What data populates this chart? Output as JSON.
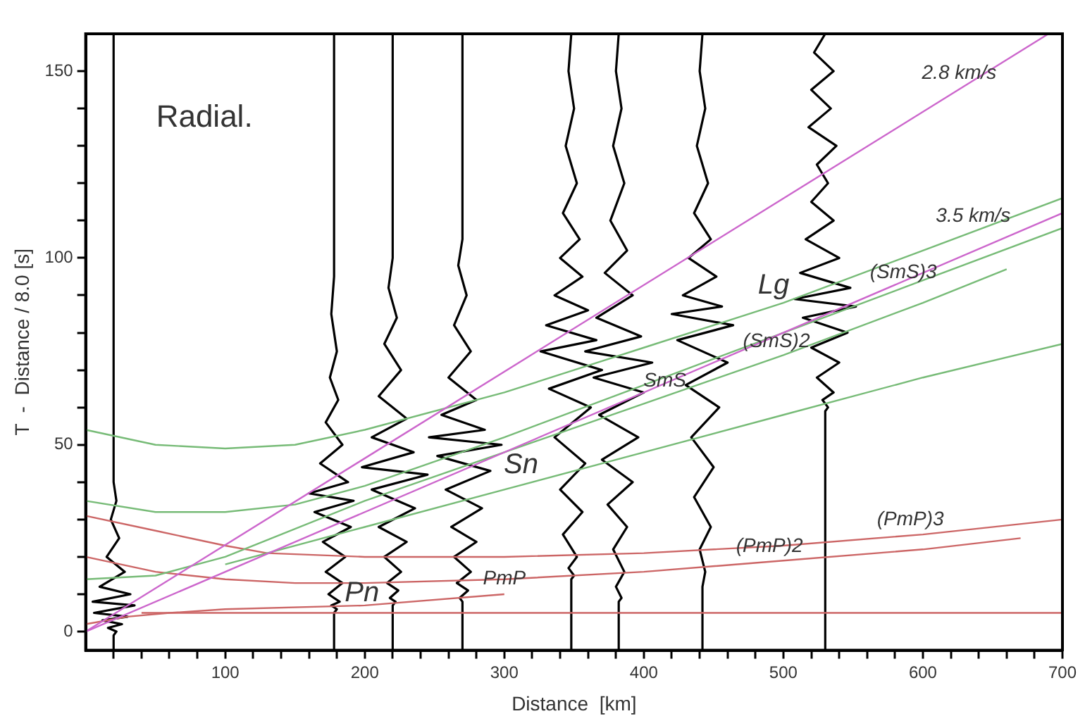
{
  "chart_data": {
    "type": "line",
    "xlabel": "Distance  [km]",
    "ylabel": "T  -  Distance / 8.0 [s]",
    "xlim": [
      0,
      700
    ],
    "ylim": [
      -5,
      160
    ],
    "xticks": [
      {
        "value": 20,
        "label": null
      },
      {
        "value": 40,
        "label": null
      },
      {
        "value": 60,
        "label": null
      },
      {
        "value": 80,
        "label": null
      },
      100,
      {
        "value": 120,
        "label": null
      },
      {
        "value": 140,
        "label": null
      },
      {
        "value": 160,
        "label": null
      },
      {
        "value": 180,
        "label": null
      },
      200,
      {
        "value": 220,
        "label": null
      },
      {
        "value": 240,
        "label": null
      },
      {
        "value": 260,
        "label": null
      },
      {
        "value": 280,
        "label": null
      },
      300,
      {
        "value": 320,
        "label": null
      },
      {
        "value": 340,
        "label": null
      },
      {
        "value": 360,
        "label": null
      },
      {
        "value": 380,
        "label": null
      },
      400,
      {
        "value": 420,
        "label": null
      },
      {
        "value": 440,
        "label": null
      },
      {
        "value": 460,
        "label": null
      },
      {
        "value": 480,
        "label": null
      },
      500,
      {
        "value": 520,
        "label": null
      },
      {
        "value": 540,
        "label": null
      },
      {
        "value": 560,
        "label": null
      },
      {
        "value": 580,
        "label": null
      },
      600,
      {
        "value": 620,
        "label": null
      },
      {
        "value": 640,
        "label": null
      },
      {
        "value": 660,
        "label": null
      },
      {
        "value": 680,
        "label": null
      },
      700
    ],
    "yticks": [
      0,
      {
        "value": 10,
        "label": null
      },
      {
        "value": 20,
        "label": null
      },
      {
        "value": 30,
        "label": null
      },
      {
        "value": 40,
        "label": null
      },
      50,
      {
        "value": 60,
        "label": null
      },
      {
        "value": 70,
        "label": null
      },
      {
        "value": 80,
        "label": null
      },
      {
        "value": 90,
        "label": null
      },
      100,
      {
        "value": 110,
        "label": null
      },
      {
        "value": 120,
        "label": null
      },
      {
        "value": 130,
        "label": null
      },
      {
        "value": 140,
        "label": null
      },
      150
    ],
    "grid": false,
    "legend": false,
    "marker": "none",
    "line_style": "solid",
    "series": [
      {
        "color": "#cc66cc",
        "x": [
          0,
          690
        ],
        "values": [
          0,
          160
        ]
      },
      {
        "color": "#cc66cc",
        "x": [
          0,
          700
        ],
        "values": [
          0,
          112
        ]
      },
      {
        "color": "#77bb77",
        "x": [
          0,
          50,
          100,
          150,
          200,
          300,
          400,
          500,
          600,
          700
        ],
        "values": [
          54,
          50,
          49,
          50,
          54,
          64,
          76,
          88,
          102,
          116
        ]
      },
      {
        "color": "#77bb77",
        "x": [
          0,
          50,
          100,
          150,
          200,
          300,
          400,
          500,
          600,
          700
        ],
        "values": [
          35,
          32,
          32,
          34,
          39,
          52,
          66,
          80,
          94,
          108
        ]
      },
      {
        "color": "#77bb77",
        "x": [
          0,
          50,
          100,
          200,
          300,
          400,
          500,
          600,
          660
        ],
        "values": [
          14,
          15,
          20,
          35,
          48,
          61,
          74,
          88,
          97
        ]
      },
      {
        "color": "#77bb77",
        "x": [
          100,
          200,
          300,
          400,
          500,
          600,
          700
        ],
        "values": [
          18,
          28,
          38,
          48,
          58,
          68,
          77
        ]
      },
      {
        "color": "#cc6666",
        "x": [
          0,
          50,
          100,
          130,
          200,
          300,
          400,
          500,
          600,
          700
        ],
        "values": [
          31,
          27,
          23,
          21,
          20,
          20,
          21,
          23,
          26,
          30
        ]
      },
      {
        "color": "#cc6666",
        "x": [
          0,
          50,
          100,
          150,
          200,
          300,
          400,
          500,
          600,
          670
        ],
        "values": [
          20,
          16,
          14,
          13,
          13,
          14,
          16,
          19,
          22,
          25
        ]
      },
      {
        "color": "#cc6666",
        "x": [
          0,
          30,
          60,
          100,
          200,
          300
        ],
        "values": [
          2,
          4,
          5,
          6,
          7,
          10
        ]
      },
      {
        "color": "#cc6666",
        "x": [
          40,
          700
        ],
        "values": [
          5,
          5
        ]
      },
      {
        "color": "#000000",
        "x": [
          20,
          20,
          22,
          18,
          24,
          15,
          28,
          10,
          32,
          5,
          35,
          6,
          30,
          12,
          26,
          16,
          22,
          20,
          20
        ],
        "values": [
          160,
          40,
          35,
          30,
          25,
          20,
          16,
          12,
          10,
          8,
          7,
          5,
          4,
          3,
          2,
          1,
          0,
          -1,
          -5
        ]
      },
      {
        "color": "#000000",
        "x": [
          178,
          178,
          176,
          180,
          175,
          181,
          172,
          184,
          168,
          188,
          160,
          192,
          164,
          190,
          170,
          186,
          172,
          184,
          174,
          182,
          176,
          180,
          178,
          178
        ],
        "values": [
          160,
          95,
          85,
          75,
          68,
          62,
          56,
          50,
          45,
          40,
          37,
          35,
          32,
          28,
          24,
          20,
          16,
          13,
          10,
          8,
          7,
          6,
          5,
          -5
        ]
      },
      {
        "color": "#000000",
        "x": [
          220,
          220,
          217,
          223,
          214,
          226,
          210,
          230,
          205,
          235,
          198,
          245,
          205,
          236,
          210,
          230,
          214,
          226,
          216,
          224,
          218,
          222,
          220,
          220
        ],
        "values": [
          160,
          100,
          92,
          84,
          77,
          70,
          63,
          57,
          52,
          48,
          44,
          42,
          38,
          33,
          28,
          24,
          20,
          16,
          13,
          11,
          9,
          8,
          7,
          -5
        ]
      },
      {
        "color": "#000000",
        "x": [
          270,
          270,
          267,
          273,
          264,
          276,
          260,
          280,
          255,
          286,
          246,
          298,
          252,
          290,
          258,
          284,
          262,
          280,
          264,
          276,
          266,
          274,
          268,
          270,
          270
        ],
        "values": [
          160,
          105,
          98,
          90,
          82,
          75,
          68,
          62,
          58,
          54,
          52,
          50,
          47,
          43,
          38,
          33,
          28,
          24,
          20,
          16,
          13,
          11,
          9,
          8,
          -5
        ]
      },
      {
        "color": "#000000",
        "x": [
          348,
          346,
          350,
          344,
          352,
          342,
          354,
          340,
          356,
          336,
          360,
          330,
          366,
          326,
          370,
          332,
          362,
          336,
          358,
          340,
          356,
          342,
          352,
          346,
          350,
          348,
          348
        ],
        "values": [
          160,
          150,
          140,
          130,
          120,
          112,
          105,
          100,
          95,
          90,
          86,
          82,
          78,
          75,
          70,
          65,
          60,
          52,
          45,
          38,
          32,
          26,
          20,
          17,
          15,
          14,
          -5
        ]
      },
      {
        "color": "#000000",
        "x": [
          382,
          380,
          384,
          378,
          386,
          376,
          388,
          372,
          392,
          366,
          398,
          358,
          406,
          364,
          400,
          368,
          396,
          370,
          392,
          374,
          388,
          378,
          386,
          380,
          384,
          382,
          382
        ],
        "values": [
          160,
          150,
          140,
          130,
          120,
          110,
          102,
          96,
          90,
          84,
          79,
          75,
          72,
          68,
          64,
          58,
          52,
          46,
          40,
          34,
          28,
          22,
          16,
          12,
          9,
          8,
          -5
        ]
      },
      {
        "color": "#000000",
        "x": [
          442,
          440,
          444,
          438,
          446,
          436,
          448,
          432,
          452,
          428,
          456,
          420,
          464,
          424,
          460,
          430,
          454,
          434,
          450,
          436,
          448,
          440,
          444,
          442,
          442
        ],
        "values": [
          160,
          150,
          140,
          130,
          120,
          112,
          105,
          100,
          95,
          90,
          87,
          85,
          82,
          78,
          72,
          66,
          60,
          52,
          44,
          36,
          28,
          22,
          16,
          12,
          -5
        ]
      },
      {
        "color": "#000000",
        "x": [
          530,
          522,
          536,
          520,
          534,
          518,
          538,
          524,
          532,
          520,
          536,
          516,
          540,
          512,
          548,
          508,
          552,
          514,
          546,
          520,
          540,
          524,
          536,
          528,
          532,
          530,
          530
        ],
        "values": [
          160,
          155,
          150,
          145,
          140,
          135,
          130,
          125,
          120,
          115,
          110,
          105,
          100,
          96,
          92,
          89,
          87,
          84,
          80,
          76,
          72,
          68,
          64,
          62,
          60,
          59,
          -5
        ]
      }
    ],
    "annotations": [
      "Radial.",
      {
        "text": "2.8 km/s",
        "x": 626,
        "y": 145.2
      },
      {
        "text": "3.5 km/s",
        "x": 636,
        "y": 107
      },
      {
        "text": "(SmS)3",
        "x": 586,
        "y": 92
      },
      {
        "text": "Lg",
        "x": 493,
        "y": 87.2
      },
      {
        "text": "(SmS)2",
        "x": 495,
        "y": 73.4
      },
      {
        "text": "SmS",
        "x": 415,
        "y": 63
      },
      {
        "text": "Sn",
        "x": 312,
        "y": 39.2
      },
      {
        "text": "PmP",
        "x": 300,
        "y": 10
      },
      {
        "text": "(PmP)2",
        "x": 490,
        "y": 18.7
      },
      {
        "text": "(PmP)3",
        "x": 591,
        "y": 25.7
      },
      {
        "text": "Pn",
        "x": 198,
        "y": 5
      }
    ]
  }
}
